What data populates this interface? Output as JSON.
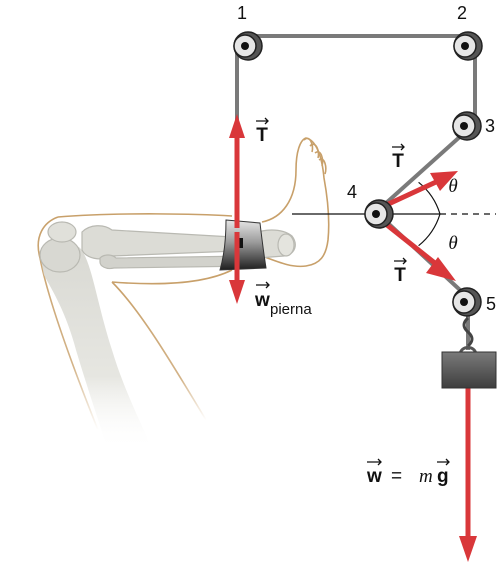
{
  "pulley_labels": [
    "1",
    "2",
    "3",
    "4",
    "5"
  ],
  "tension_symbol": "T",
  "angle_symbol": "θ",
  "leg_weight": {
    "symbol": "w",
    "subscript": "pierna"
  },
  "hanging_weight": {
    "w": "w",
    "equals": "=",
    "m": "m",
    "g": "g"
  },
  "colors": {
    "rope": "#7a7a7a",
    "arrow": "#d9373a",
    "leg_outline": "#c8a06a",
    "bone": "#dcdcd6",
    "pulley": "#2a2a2a"
  }
}
